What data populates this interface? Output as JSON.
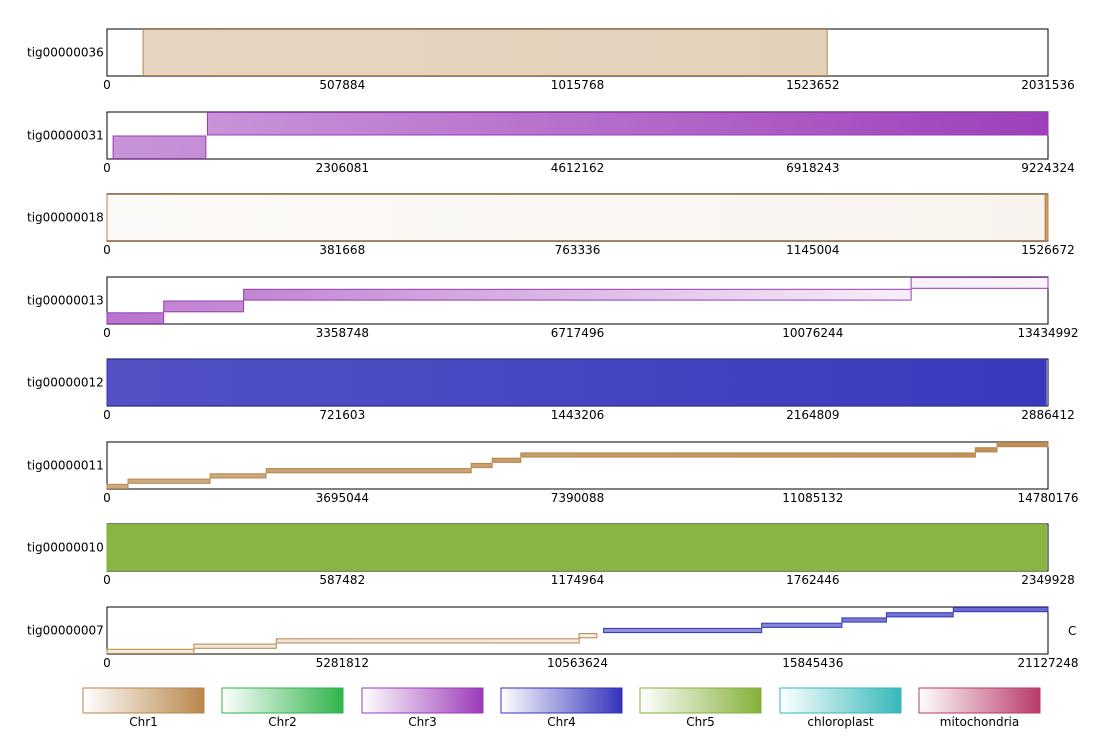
{
  "chart_data": {
    "type": "bar",
    "colors": {
      "Chr1": "#b8864a",
      "Chr2": "#2fb34a",
      "Chr3": "#9b3ab8",
      "Chr4": "#3333bb",
      "Chr5": "#84b03a",
      "chloroplast": "#35b8b8",
      "mitochondria": "#b83a6a"
    },
    "legend": [
      "Chr1",
      "Chr2",
      "Chr3",
      "Chr4",
      "Chr5",
      "chloroplast",
      "mitochondria"
    ],
    "extra_label": "C",
    "contigs": [
      {
        "name": "tig00000036",
        "length": 2031536,
        "ticks": [
          "0",
          "507884",
          "1015768",
          "1523652",
          "2031536"
        ],
        "segments": [
          {
            "chr": "Chr1",
            "start": 78000,
            "end": 1555000,
            "row": 0,
            "rows": 1,
            "g0": 0.35,
            "g1": 0.38
          }
        ]
      },
      {
        "name": "tig00000031",
        "length": 9224324,
        "ticks": [
          "0",
          "2306081",
          "4612162",
          "6918243",
          "9224324"
        ],
        "segments": [
          {
            "chr": "Chr3",
            "start": 60000,
            "end": 970000,
            "row": 1,
            "rows": 2,
            "g0": 0.55,
            "g1": 0.58
          },
          {
            "chr": "Chr3",
            "start": 985000,
            "end": 9224324,
            "row": 0,
            "rows": 2,
            "g0": 0.55,
            "g1": 0.97
          }
        ]
      },
      {
        "name": "tig00000018",
        "length": 1526672,
        "ticks": [
          "0",
          "381668",
          "763336",
          "1145004",
          "1526672"
        ],
        "segments": [
          {
            "chr": "Chr1",
            "start": 0,
            "end": 1522000,
            "row": 0,
            "rows": 1,
            "g0": 0.04,
            "g1": 0.1
          },
          {
            "chr": "Chr1",
            "start": 1522500,
            "end": 1526672,
            "row": 0,
            "rows": 1,
            "g0": 0.8,
            "g1": 0.8
          }
        ]
      },
      {
        "name": "tig00000013",
        "length": 13434992,
        "ticks": [
          "0",
          "3358748",
          "6717496",
          "10076244",
          "13434992"
        ],
        "segments": [
          {
            "chr": "Chr3",
            "start": 0,
            "end": 810000,
            "row": 3,
            "rows": 4,
            "g0": 0.7,
            "g1": 0.68
          },
          {
            "chr": "Chr3",
            "start": 810000,
            "end": 1950000,
            "row": 2,
            "rows": 4,
            "g0": 0.62,
            "g1": 0.6
          },
          {
            "chr": "Chr3",
            "start": 1950000,
            "end": 11480000,
            "row": 1,
            "rows": 4,
            "g0": 0.62,
            "g1": 0.08
          },
          {
            "chr": "Chr3",
            "start": 11480000,
            "end": 13434992,
            "row": 0,
            "rows": 4,
            "g0": 0.08,
            "g1": 0.05
          }
        ]
      },
      {
        "name": "tig00000012",
        "length": 2886412,
        "ticks": [
          "0",
          "721603",
          "1443206",
          "2164809",
          "2886412"
        ],
        "segments": [
          {
            "chr": "Chr4",
            "start": 0,
            "end": 2881000,
            "row": 0,
            "rows": 1,
            "g0": 0.85,
            "g1": 0.97
          }
        ]
      },
      {
        "name": "tig00000011",
        "length": 14780176,
        "ticks": [
          "0",
          "3695044",
          "7390088",
          "11085132",
          "14780176"
        ],
        "segments": [
          {
            "chr": "Chr1",
            "start": 0,
            "end": 330000,
            "row": 8,
            "rows": 9,
            "g0": 0.7,
            "g1": 0.7
          },
          {
            "chr": "Chr1",
            "start": 330000,
            "end": 1620000,
            "row": 7,
            "rows": 9,
            "g0": 0.7,
            "g1": 0.7
          },
          {
            "chr": "Chr1",
            "start": 1620000,
            "end": 2500000,
            "row": 6,
            "rows": 9,
            "g0": 0.72,
            "g1": 0.72
          },
          {
            "chr": "Chr1",
            "start": 2500000,
            "end": 5720000,
            "row": 5,
            "rows": 9,
            "g0": 0.75,
            "g1": 0.75
          },
          {
            "chr": "Chr1",
            "start": 5720000,
            "end": 6050000,
            "row": 4,
            "rows": 9,
            "g0": 0.78,
            "g1": 0.78
          },
          {
            "chr": "Chr1",
            "start": 6050000,
            "end": 6500000,
            "row": 3,
            "rows": 9,
            "g0": 0.8,
            "g1": 0.8
          },
          {
            "chr": "Chr1",
            "start": 6500000,
            "end": 13640000,
            "row": 2,
            "rows": 9,
            "g0": 0.82,
            "g1": 0.9
          },
          {
            "chr": "Chr1",
            "start": 13640000,
            "end": 13980000,
            "row": 1,
            "rows": 9,
            "g0": 0.9,
            "g1": 0.9
          },
          {
            "chr": "Chr1",
            "start": 13980000,
            "end": 14780176,
            "row": 0,
            "rows": 9,
            "g0": 0.92,
            "g1": 0.92
          }
        ]
      },
      {
        "name": "tig00000010",
        "length": 2349928,
        "ticks": [
          "0",
          "587482",
          "1174964",
          "1762446",
          "2349928"
        ],
        "segments": [
          {
            "chr": "Chr5",
            "start": 0,
            "end": 2346000,
            "row": 0,
            "rows": 1,
            "g0": 0.95,
            "g1": 0.95
          }
        ]
      },
      {
        "name": "tig00000007",
        "length": 21127248,
        "ticks": [
          "0",
          "5281812",
          "10563624",
          "15845436",
          "21127248"
        ],
        "segments": [
          {
            "chr": "Chr1",
            "start": 0,
            "end": 1950000,
            "row": 8,
            "rows": 9,
            "g0": 0.2,
            "g1": 0.2
          },
          {
            "chr": "Chr1",
            "start": 1950000,
            "end": 3800000,
            "row": 7,
            "rows": 9,
            "g0": 0.2,
            "g1": 0.2
          },
          {
            "chr": "Chr1",
            "start": 3800000,
            "end": 10600000,
            "row": 6,
            "rows": 9,
            "g0": 0.22,
            "g1": 0.15
          },
          {
            "chr": "Chr1",
            "start": 10600000,
            "end": 11000000,
            "row": 5,
            "rows": 9,
            "g0": 0.15,
            "g1": 0.15
          },
          {
            "chr": "Chr4",
            "start": 11150000,
            "end": 14700000,
            "row": 4,
            "rows": 9,
            "g0": 0.55,
            "g1": 0.55
          },
          {
            "chr": "Chr4",
            "start": 14700000,
            "end": 16500000,
            "row": 3,
            "rows": 9,
            "g0": 0.6,
            "g1": 0.6
          },
          {
            "chr": "Chr4",
            "start": 16500000,
            "end": 17500000,
            "row": 2,
            "rows": 9,
            "g0": 0.65,
            "g1": 0.65
          },
          {
            "chr": "Chr4",
            "start": 17500000,
            "end": 19000000,
            "row": 1,
            "rows": 9,
            "g0": 0.68,
            "g1": 0.68
          },
          {
            "chr": "Chr4",
            "start": 19000000,
            "end": 21127248,
            "row": 0,
            "rows": 9,
            "g0": 0.72,
            "g1": 0.72
          }
        ]
      }
    ]
  }
}
